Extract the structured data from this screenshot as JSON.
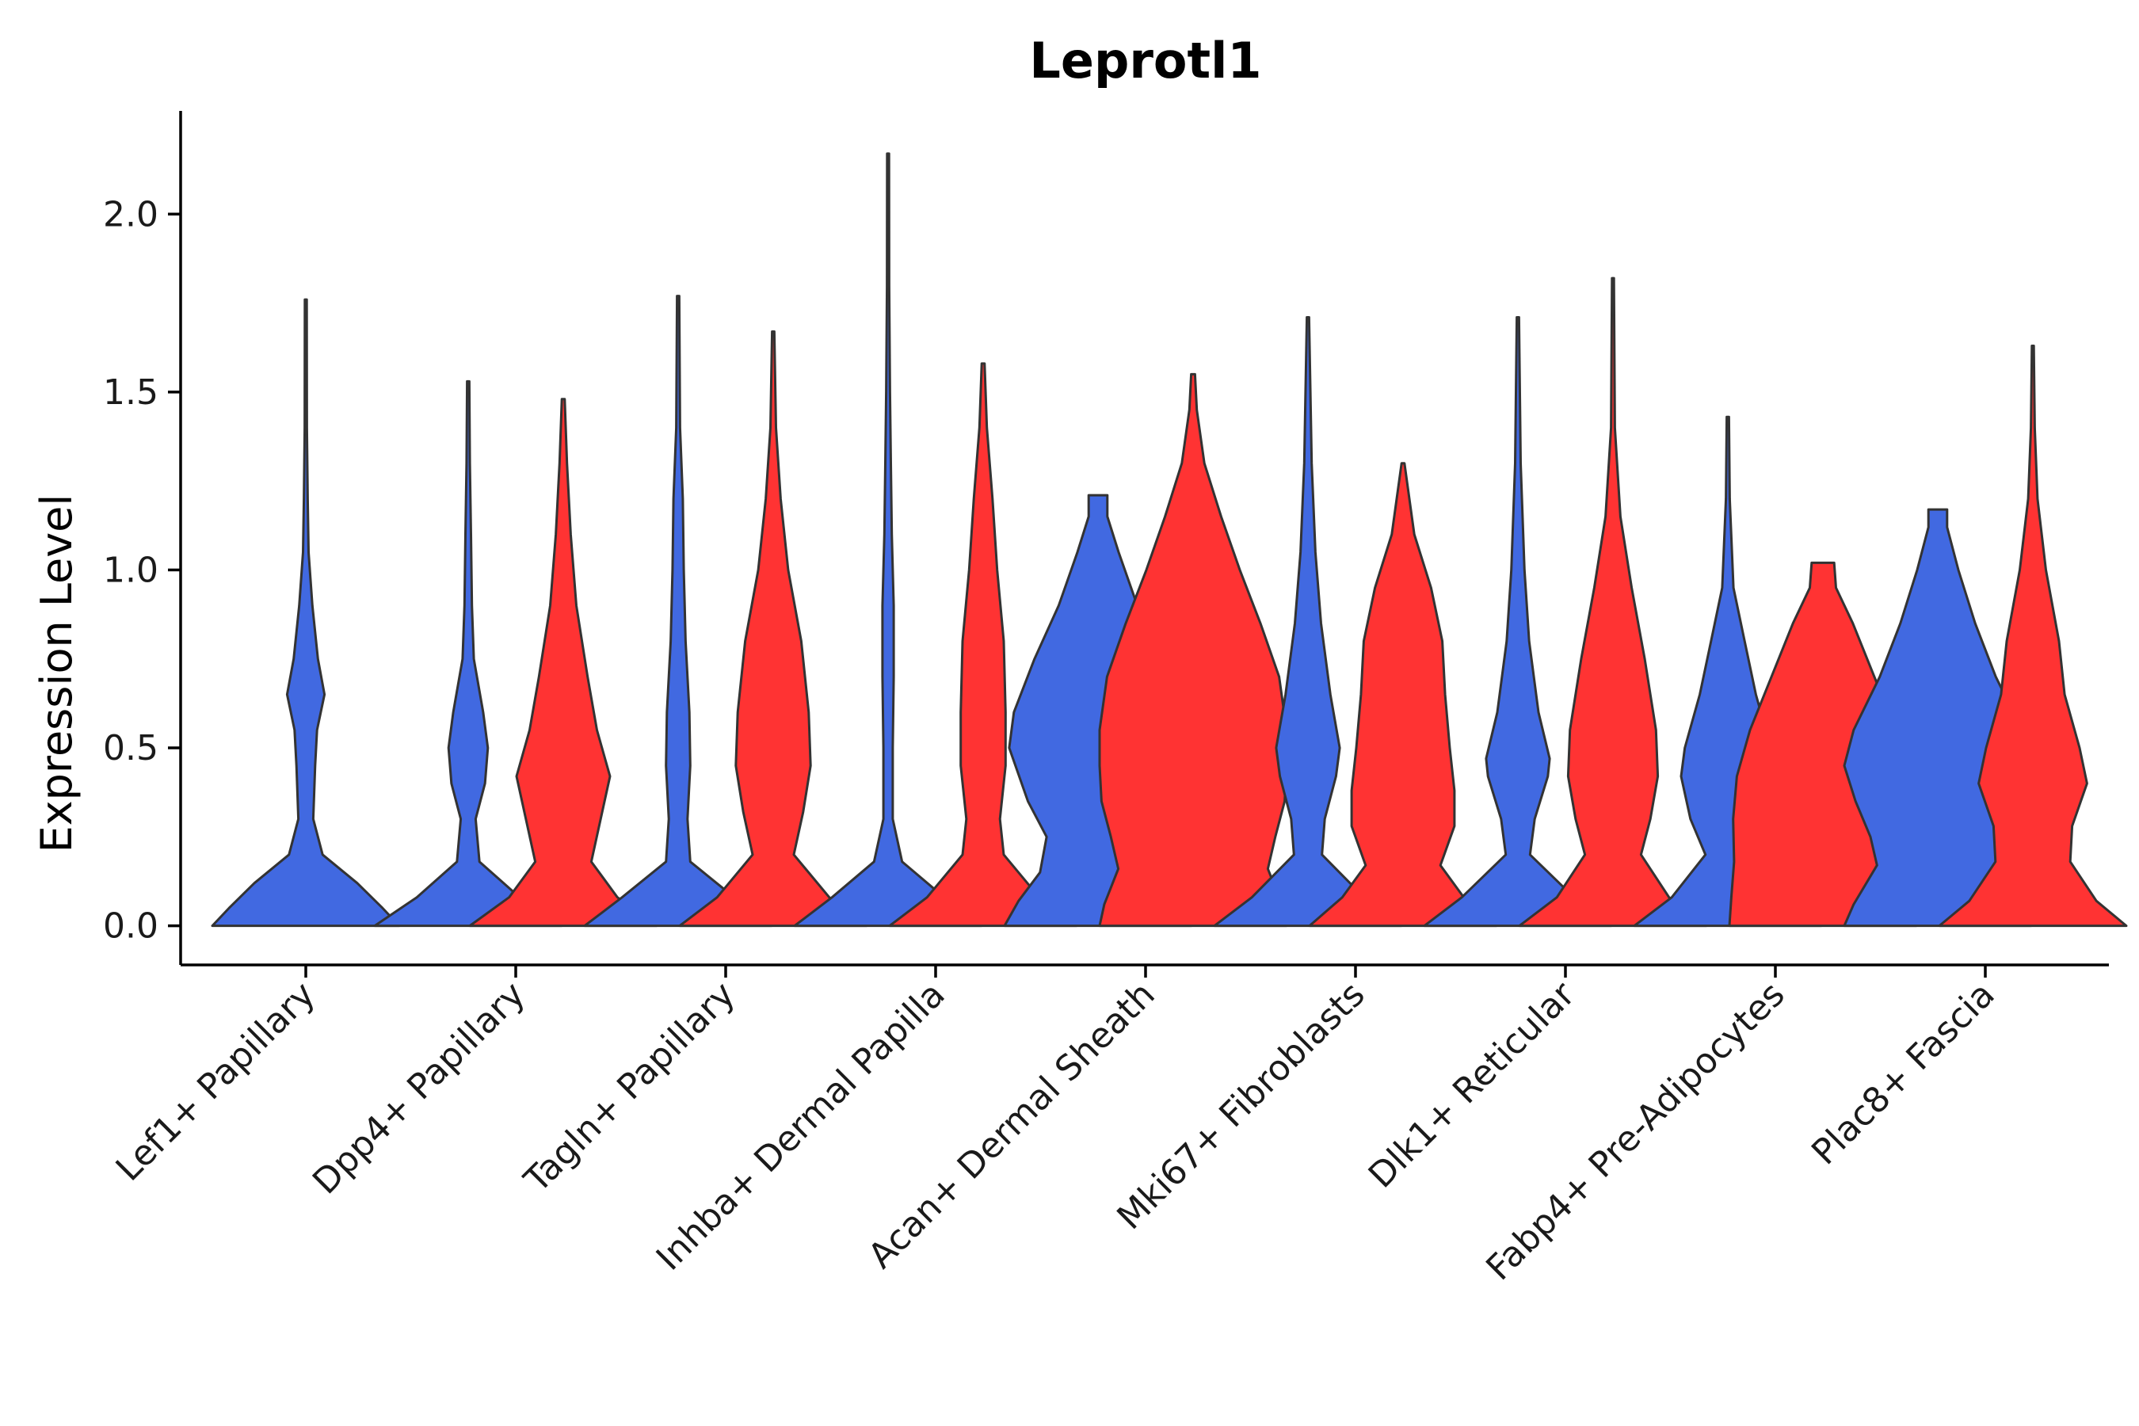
{
  "chart_data": {
    "type": "violin",
    "title": "Leprotl1",
    "ylabel": "Expression Level",
    "xlabel": "",
    "ylim": [
      -0.11,
      2.29
    ],
    "yticks": [
      0.0,
      0.5,
      1.0,
      1.5,
      2.0
    ],
    "ytick_labels": [
      "0.0",
      "0.5",
      "1.0",
      "1.5",
      "2.0"
    ],
    "colors": {
      "blue": "#4169E1",
      "red": "#FF3333",
      "outline": "#333333",
      "axis": "#000000"
    },
    "categories": [
      {
        "label": "Lef1+ Papillary",
        "violins": [
          {
            "color": "blue",
            "max": 1.76,
            "profile": [
              [
                0,
                1.0
              ],
              [
                0.05,
                0.82
              ],
              [
                0.12,
                0.55
              ],
              [
                0.2,
                0.18
              ],
              [
                0.3,
                0.08
              ],
              [
                0.45,
                0.1
              ],
              [
                0.55,
                0.12
              ],
              [
                0.65,
                0.2
              ],
              [
                0.75,
                0.13
              ],
              [
                0.9,
                0.07
              ],
              [
                1.05,
                0.03
              ],
              [
                1.2,
                0.02
              ],
              [
                1.4,
                0.012
              ],
              [
                1.76,
                0.01
              ]
            ]
          }
        ]
      },
      {
        "label": "Dpp4+ Papillary",
        "violins": [
          {
            "color": "blue",
            "max": 1.53,
            "profile": [
              [
                0,
                1.0
              ],
              [
                0.08,
                0.55
              ],
              [
                0.18,
                0.12
              ],
              [
                0.3,
                0.08
              ],
              [
                0.4,
                0.18
              ],
              [
                0.5,
                0.21
              ],
              [
                0.6,
                0.16
              ],
              [
                0.75,
                0.06
              ],
              [
                0.9,
                0.04
              ],
              [
                1.1,
                0.03
              ],
              [
                1.3,
                0.018
              ],
              [
                1.53,
                0.012
              ]
            ]
          },
          {
            "color": "red",
            "max": 1.48,
            "profile": [
              [
                0,
                1.0
              ],
              [
                0.08,
                0.58
              ],
              [
                0.18,
                0.3
              ],
              [
                0.3,
                0.4
              ],
              [
                0.42,
                0.5
              ],
              [
                0.55,
                0.36
              ],
              [
                0.7,
                0.26
              ],
              [
                0.9,
                0.14
              ],
              [
                1.1,
                0.08
              ],
              [
                1.3,
                0.04
              ],
              [
                1.48,
                0.015
              ]
            ]
          }
        ]
      },
      {
        "label": "Tagln+ Papillary",
        "violins": [
          {
            "color": "blue",
            "max": 1.77,
            "profile": [
              [
                0,
                1.0
              ],
              [
                0.08,
                0.6
              ],
              [
                0.18,
                0.13
              ],
              [
                0.3,
                0.1
              ],
              [
                0.45,
                0.13
              ],
              [
                0.6,
                0.12
              ],
              [
                0.8,
                0.08
              ],
              [
                1.0,
                0.06
              ],
              [
                1.2,
                0.05
              ],
              [
                1.4,
                0.02
              ],
              [
                1.77,
                0.012
              ]
            ]
          },
          {
            "color": "red",
            "max": 1.67,
            "profile": [
              [
                0,
                1.0
              ],
              [
                0.08,
                0.6
              ],
              [
                0.2,
                0.22
              ],
              [
                0.32,
                0.32
              ],
              [
                0.45,
                0.4
              ],
              [
                0.6,
                0.38
              ],
              [
                0.8,
                0.3
              ],
              [
                1.0,
                0.16
              ],
              [
                1.2,
                0.08
              ],
              [
                1.4,
                0.03
              ],
              [
                1.67,
                0.012
              ]
            ]
          }
        ]
      },
      {
        "label": "Inhba+ Dermal Papilla",
        "violins": [
          {
            "color": "blue",
            "max": 2.17,
            "profile": [
              [
                0,
                1.0
              ],
              [
                0.08,
                0.6
              ],
              [
                0.18,
                0.15
              ],
              [
                0.3,
                0.05
              ],
              [
                0.5,
                0.05
              ],
              [
                0.7,
                0.06
              ],
              [
                0.9,
                0.06
              ],
              [
                1.1,
                0.04
              ],
              [
                1.3,
                0.03
              ],
              [
                1.5,
                0.02
              ],
              [
                1.8,
                0.012
              ],
              [
                2.17,
                0.01
              ]
            ]
          },
          {
            "color": "red",
            "max": 1.58,
            "profile": [
              [
                0,
                1.0
              ],
              [
                0.08,
                0.6
              ],
              [
                0.2,
                0.22
              ],
              [
                0.3,
                0.18
              ],
              [
                0.45,
                0.24
              ],
              [
                0.6,
                0.24
              ],
              [
                0.8,
                0.22
              ],
              [
                1.0,
                0.15
              ],
              [
                1.2,
                0.1
              ],
              [
                1.4,
                0.04
              ],
              [
                1.58,
                0.015
              ]
            ]
          }
        ]
      },
      {
        "label": "Acan+ Dermal Sheath",
        "violins": [
          {
            "color": "blue",
            "max": 1.21,
            "profile": [
              [
                0,
                1.0
              ],
              [
                0.07,
                0.85
              ],
              [
                0.15,
                0.62
              ],
              [
                0.25,
                0.55
              ],
              [
                0.35,
                0.75
              ],
              [
                0.5,
                0.95
              ],
              [
                0.6,
                0.9
              ],
              [
                0.75,
                0.68
              ],
              [
                0.9,
                0.42
              ],
              [
                1.05,
                0.22
              ],
              [
                1.15,
                0.1
              ],
              [
                1.21,
                0.1
              ]
            ]
          },
          {
            "color": "red",
            "max": 1.55,
            "profile": [
              [
                0,
                1.0
              ],
              [
                0.06,
                0.95
              ],
              [
                0.16,
                0.8
              ],
              [
                0.25,
                0.88
              ],
              [
                0.35,
                0.98
              ],
              [
                0.45,
                1.0
              ],
              [
                0.55,
                1.0
              ],
              [
                0.7,
                0.92
              ],
              [
                0.85,
                0.72
              ],
              [
                1.0,
                0.5
              ],
              [
                1.15,
                0.3
              ],
              [
                1.3,
                0.12
              ],
              [
                1.45,
                0.04
              ],
              [
                1.55,
                0.02
              ]
            ]
          }
        ]
      },
      {
        "label": "Mki67+ Fibroblasts",
        "violins": [
          {
            "color": "blue",
            "max": 1.71,
            "profile": [
              [
                0,
                1.0
              ],
              [
                0.08,
                0.6
              ],
              [
                0.2,
                0.15
              ],
              [
                0.3,
                0.18
              ],
              [
                0.42,
                0.3
              ],
              [
                0.5,
                0.34
              ],
              [
                0.65,
                0.24
              ],
              [
                0.85,
                0.14
              ],
              [
                1.05,
                0.08
              ],
              [
                1.3,
                0.04
              ],
              [
                1.71,
                0.012
              ]
            ]
          },
          {
            "color": "red",
            "max": 1.3,
            "profile": [
              [
                0,
                1.0
              ],
              [
                0.08,
                0.65
              ],
              [
                0.17,
                0.4
              ],
              [
                0.28,
                0.55
              ],
              [
                0.38,
                0.55
              ],
              [
                0.5,
                0.5
              ],
              [
                0.65,
                0.45
              ],
              [
                0.8,
                0.42
              ],
              [
                0.95,
                0.3
              ],
              [
                1.1,
                0.12
              ],
              [
                1.3,
                0.015
              ]
            ]
          }
        ]
      },
      {
        "label": "Dlk1+ Reticular",
        "violins": [
          {
            "color": "blue",
            "max": 1.71,
            "profile": [
              [
                0,
                1.0
              ],
              [
                0.08,
                0.6
              ],
              [
                0.2,
                0.13
              ],
              [
                0.3,
                0.18
              ],
              [
                0.42,
                0.32
              ],
              [
                0.47,
                0.34
              ],
              [
                0.6,
                0.22
              ],
              [
                0.8,
                0.12
              ],
              [
                1.0,
                0.07
              ],
              [
                1.3,
                0.03
              ],
              [
                1.71,
                0.012
              ]
            ]
          },
          {
            "color": "red",
            "max": 1.82,
            "profile": [
              [
                0,
                1.0
              ],
              [
                0.08,
                0.6
              ],
              [
                0.2,
                0.3
              ],
              [
                0.3,
                0.4
              ],
              [
                0.42,
                0.48
              ],
              [
                0.55,
                0.46
              ],
              [
                0.75,
                0.34
              ],
              [
                0.95,
                0.2
              ],
              [
                1.15,
                0.08
              ],
              [
                1.4,
                0.02
              ],
              [
                1.82,
                0.01
              ]
            ]
          }
        ]
      },
      {
        "label": "Fabp4+ Pre-Adipocytes",
        "violins": [
          {
            "color": "blue",
            "max": 1.43,
            "profile": [
              [
                0,
                1.0
              ],
              [
                0.08,
                0.6
              ],
              [
                0.2,
                0.24
              ],
              [
                0.3,
                0.4
              ],
              [
                0.42,
                0.5
              ],
              [
                0.5,
                0.46
              ],
              [
                0.65,
                0.3
              ],
              [
                0.8,
                0.18
              ],
              [
                0.95,
                0.06
              ],
              [
                1.2,
                0.02
              ],
              [
                1.43,
                0.012
              ]
            ]
          },
          {
            "color": "red",
            "max": 1.02,
            "profile": [
              [
                0,
                1.0
              ],
              [
                0.08,
                0.98
              ],
              [
                0.18,
                0.95
              ],
              [
                0.3,
                0.96
              ],
              [
                0.42,
                0.92
              ],
              [
                0.55,
                0.78
              ],
              [
                0.7,
                0.55
              ],
              [
                0.85,
                0.32
              ],
              [
                0.95,
                0.14
              ],
              [
                1.02,
                0.12
              ]
            ]
          }
        ]
      },
      {
        "label": "Plac8+ Fascia",
        "violins": [
          {
            "color": "blue",
            "max": 1.17,
            "profile": [
              [
                0,
                1.0
              ],
              [
                0.06,
                0.9
              ],
              [
                0.17,
                0.65
              ],
              [
                0.25,
                0.72
              ],
              [
                0.35,
                0.88
              ],
              [
                0.45,
                1.0
              ],
              [
                0.55,
                0.9
              ],
              [
                0.7,
                0.62
              ],
              [
                0.85,
                0.4
              ],
              [
                1.0,
                0.22
              ],
              [
                1.12,
                0.1
              ],
              [
                1.17,
                0.1
              ]
            ]
          },
          {
            "color": "red",
            "max": 1.63,
            "profile": [
              [
                0,
                1.0
              ],
              [
                0.07,
                0.68
              ],
              [
                0.18,
                0.4
              ],
              [
                0.28,
                0.42
              ],
              [
                0.4,
                0.58
              ],
              [
                0.5,
                0.5
              ],
              [
                0.65,
                0.34
              ],
              [
                0.8,
                0.28
              ],
              [
                1.0,
                0.14
              ],
              [
                1.2,
                0.05
              ],
              [
                1.4,
                0.02
              ],
              [
                1.63,
                0.01
              ]
            ]
          }
        ]
      }
    ]
  }
}
